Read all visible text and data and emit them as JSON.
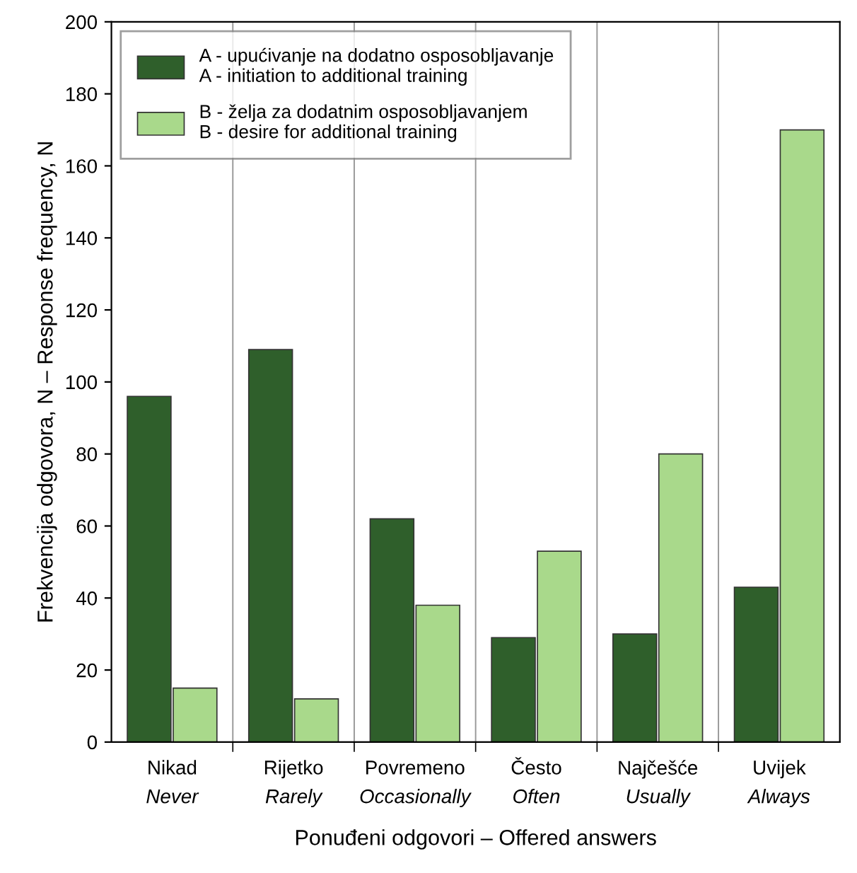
{
  "chart_data": {
    "type": "bar",
    "categories": [
      "Nikad\nNever",
      "Rijetko\nRarely",
      "Povremeno\nOccasionally",
      "Često\nOften",
      "Najčešće\nUsually",
      "Uvijek\nAlways"
    ],
    "series": [
      {
        "name": "A - upućivanje na dodatno osposobljavanje\nA - initiation to additional training",
        "color": "#2f5f2b",
        "values": [
          96,
          109,
          62,
          29,
          30,
          43
        ]
      },
      {
        "name": "B - želja za dodatnim osposobljavanjem\nB - desire for additional training",
        "color": "#a9d98b",
        "values": [
          15,
          12,
          38,
          53,
          80,
          170
        ]
      }
    ],
    "ylim": [
      0,
      200
    ],
    "yticks": [
      0,
      20,
      40,
      60,
      80,
      100,
      120,
      140,
      160,
      180,
      200
    ],
    "xlabel": "Ponuđeni odgovori – Offered answers",
    "ylabel": "Frekvencija odgovora, N – Response frequency, N",
    "grid": "x",
    "legend": "top left"
  }
}
